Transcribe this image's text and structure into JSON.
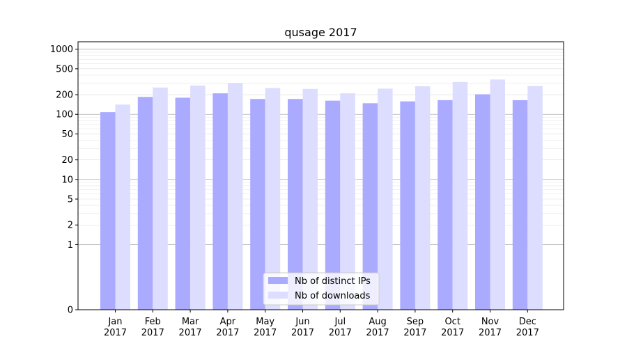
{
  "chart_data": {
    "type": "bar",
    "title": "qusage 2017",
    "xlabel": "",
    "ylabel": "",
    "y_scale": "symlog",
    "ylim": [
      0,
      1300
    ],
    "yticks": [
      0,
      1,
      2,
      5,
      10,
      20,
      50,
      100,
      200,
      500,
      1000
    ],
    "categories": [
      "Jan\n2017",
      "Feb\n2017",
      "Mar\n2017",
      "Apr\n2017",
      "May\n2017",
      "Jun\n2017",
      "Jul\n2017",
      "Aug\n2017",
      "Sep\n2017",
      "Oct\n2017",
      "Nov\n2017",
      "Dec\n2017"
    ],
    "series": [
      {
        "name": "Nb of distinct IPs",
        "color": "#aaaaff",
        "values": [
          108,
          185,
          180,
          210,
          172,
          172,
          162,
          148,
          158,
          165,
          203,
          165
        ]
      },
      {
        "name": "Nb of downloads",
        "color": "#ddddff",
        "values": [
          141,
          258,
          277,
          304,
          253,
          245,
          210,
          248,
          270,
          313,
          342,
          272
        ]
      }
    ],
    "grid": true,
    "legend_position": "bottom-center"
  }
}
